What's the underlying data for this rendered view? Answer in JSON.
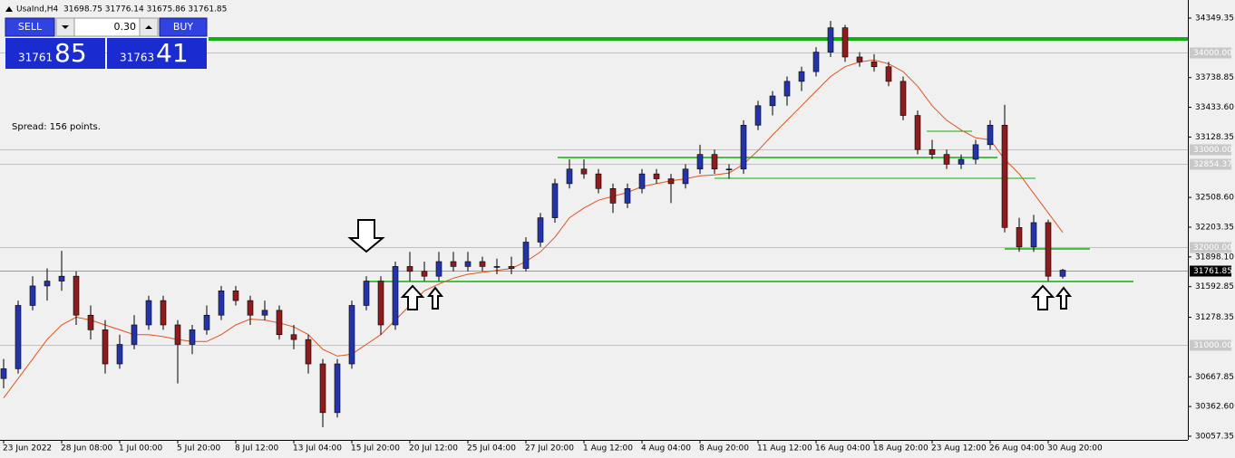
{
  "terminal": {
    "symbol": "UsaInd,H4",
    "ohlc": "31698.75 31776.14 31675.86 31761.85",
    "sell": "SELL",
    "buy": "BUY",
    "lot": "0.30",
    "bid_main": "31761",
    "bid_pips": "85",
    "ask_main": "31763",
    "ask_pips": "41",
    "spread": "Spread: 156 points."
  },
  "chart_data": {
    "type": "candlestick",
    "categories": [
      "23 Jun 2022",
      null,
      null,
      null,
      "28 Jun 08:00",
      null,
      null,
      null,
      "1 Jul 00:00",
      null,
      null,
      null,
      "5 Jul 20:00",
      null,
      null,
      null,
      "8 Jul 12:00",
      null,
      null,
      null,
      "13 Jul 04:00",
      null,
      null,
      null,
      "15 Jul 20:00",
      null,
      null,
      null,
      "20 Jul 12:00",
      null,
      null,
      null,
      "25 Jul 04:00",
      null,
      null,
      null,
      "27 Jul 20:00",
      null,
      null,
      null,
      "1 Aug 12:00",
      null,
      null,
      null,
      "4 Aug 04:00",
      null,
      null,
      null,
      "8 Aug 20:00",
      null,
      null,
      null,
      "11 Aug 12:00",
      null,
      null,
      null,
      "16 Aug 04:00",
      null,
      null,
      null,
      "18 Aug 20:00",
      null,
      null,
      null,
      "23 Aug 12:00",
      null,
      null,
      null,
      "26 Aug 04:00",
      null,
      null,
      null,
      "30 Aug 20:00",
      null
    ],
    "open": [
      30650,
      30750,
      31400,
      31600,
      31650,
      31700,
      31300,
      31150,
      30800,
      31000,
      31200,
      31450,
      31200,
      31000,
      31150,
      31300,
      31550,
      31450,
      31300,
      31350,
      31100,
      31050,
      30800,
      30300,
      30800,
      31400,
      31650,
      31200,
      31800,
      31750,
      31700,
      31850,
      31800,
      31850,
      31800,
      31800,
      31780,
      32050,
      32300,
      32650,
      32800,
      32750,
      32600,
      32450,
      32600,
      32750,
      32700,
      32650,
      32800,
      32950,
      32800,
      32800,
      33250,
      33450,
      33550,
      33700,
      33800,
      34000,
      34250,
      33950,
      33900,
      33850,
      33700,
      33350,
      33000,
      32950,
      32850,
      32900,
      33050,
      33250,
      32200,
      32000,
      32250,
      31698.75
    ],
    "high": [
      30850,
      31450,
      31700,
      31780,
      31960,
      31750,
      31400,
      31250,
      31100,
      31300,
      31500,
      31500,
      31250,
      31200,
      31400,
      31600,
      31600,
      31500,
      31450,
      31400,
      31200,
      31100,
      30850,
      30850,
      31450,
      31700,
      31700,
      31850,
      31950,
      31850,
      31950,
      31950,
      31950,
      31900,
      31880,
      31900,
      32100,
      32350,
      32700,
      32900,
      32900,
      32800,
      32650,
      32650,
      32800,
      32800,
      32750,
      32850,
      33050,
      33000,
      32850,
      33300,
      33500,
      33600,
      33750,
      33850,
      34050,
      34320,
      34280,
      34000,
      33980,
      33900,
      33750,
      33400,
      33100,
      33000,
      32950,
      33100,
      33300,
      33460,
      32300,
      32330,
      32280,
      31776.14
    ],
    "low": [
      30550,
      30700,
      31350,
      31450,
      31550,
      31200,
      31050,
      30700,
      30750,
      30950,
      31150,
      31150,
      30600,
      30900,
      31100,
      31250,
      31400,
      31200,
      31250,
      31050,
      30950,
      30700,
      30150,
      30250,
      30750,
      31350,
      31100,
      31150,
      31650,
      31650,
      31650,
      31750,
      31750,
      31750,
      31720,
      31720,
      31750,
      32000,
      32250,
      32600,
      32700,
      32550,
      32350,
      32400,
      32550,
      32650,
      32450,
      32600,
      32750,
      32750,
      32700,
      32750,
      33200,
      33350,
      33450,
      33600,
      33750,
      33950,
      33900,
      33850,
      33800,
      33650,
      33300,
      32950,
      32900,
      32800,
      32800,
      32850,
      33000,
      32150,
      31950,
      31950,
      31650,
      31675.86
    ],
    "close": [
      30750,
      31400,
      31600,
      31650,
      31700,
      31300,
      31150,
      30800,
      31000,
      31200,
      31450,
      31200,
      31000,
      31150,
      31300,
      31550,
      31450,
      31300,
      31350,
      31100,
      31050,
      30800,
      30300,
      30800,
      31400,
      31650,
      31200,
      31800,
      31750,
      31700,
      31850,
      31800,
      31850,
      31800,
      31800,
      31780,
      32050,
      32300,
      32650,
      32800,
      32750,
      32600,
      32450,
      32600,
      32750,
      32700,
      32650,
      32800,
      32950,
      32800,
      32800,
      33250,
      33450,
      33550,
      33700,
      33800,
      34000,
      34250,
      33950,
      33900,
      33850,
      33700,
      33350,
      33000,
      32950,
      32850,
      32900,
      33050,
      33250,
      32200,
      32000,
      32250,
      31700,
      31761.85
    ],
    "ma": {
      "color": "#e0541c",
      "values": [
        30450,
        30650,
        30850,
        31050,
        31200,
        31280,
        31250,
        31200,
        31150,
        31100,
        31100,
        31080,
        31050,
        31030,
        31030,
        31100,
        31200,
        31260,
        31250,
        31220,
        31180,
        31100,
        30950,
        30880,
        30900,
        31000,
        31100,
        31250,
        31400,
        31550,
        31620,
        31680,
        31720,
        31740,
        31760,
        31780,
        31850,
        31950,
        32100,
        32300,
        32400,
        32480,
        32520,
        32560,
        32620,
        32650,
        32680,
        32700,
        32730,
        32740,
        32760,
        32850,
        32990,
        33150,
        33300,
        33450,
        33600,
        33750,
        33850,
        33900,
        33920,
        33880,
        33800,
        33650,
        33450,
        33300,
        33200,
        33120,
        33100,
        32900,
        32750,
        32550,
        32350,
        32150
      ]
    },
    "up_color": "#2334a8",
    "down_color": "#8f1c1c",
    "ylim": [
      30020,
      34535
    ],
    "yticks": [
      {
        "value": 34349.35,
        "label": "34349.35"
      },
      {
        "value": 33738.85,
        "label": "33738.85"
      },
      {
        "value": 33433.6,
        "label": "33433.60"
      },
      {
        "value": 33128.35,
        "label": "33128.35"
      },
      {
        "value": 32508.6,
        "label": "32508.60"
      },
      {
        "value": 32203.35,
        "label": "32203.35"
      },
      {
        "value": 31898.1,
        "label": "31898.10"
      },
      {
        "value": 31592.85,
        "label": "31592.85"
      },
      {
        "value": 31278.35,
        "label": "31278.35"
      },
      {
        "value": 30667.85,
        "label": "30667.85"
      },
      {
        "value": 30362.6,
        "label": "30362.60"
      },
      {
        "value": 30057.35,
        "label": "30057.35"
      }
    ],
    "levels": [
      {
        "value": 34000,
        "label": "34000.00"
      },
      {
        "value": 33000,
        "label": "33000.00"
      },
      {
        "value": 32854.37,
        "label": "32854.37"
      },
      {
        "value": 32000,
        "label": "32000.00"
      },
      {
        "value": 31000,
        "label": "31000.00"
      }
    ],
    "last_price": {
      "value": 31761.85,
      "label": "31761.85"
    },
    "green_levels": {
      "color": "#11b011",
      "values": [
        34135.6,
        31645.9,
        32918.6,
        32705,
        33188,
        31980
      ]
    }
  }
}
